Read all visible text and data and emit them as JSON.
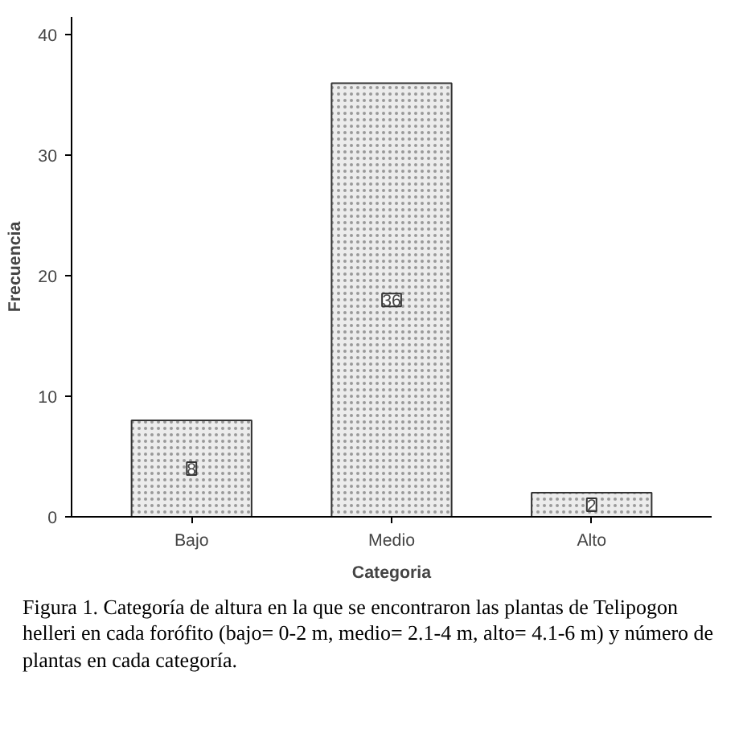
{
  "chart_data": {
    "type": "bar",
    "categories": [
      "Bajo",
      "Medio",
      "Alto"
    ],
    "values": [
      8,
      36,
      2
    ],
    "color": "#ececec",
    "xlabel": "Categoria",
    "ylabel": "Frecuencia",
    "ylim": [
      0,
      41.5
    ],
    "yticks": [
      0,
      10,
      20,
      30,
      40
    ],
    "data_labels": true,
    "grid": false,
    "annotations": [
      "Figura 1. Categoría de altura en la que se encontraron las plantas de Telipogon helleri en cada forófito (bajo= 0-2 m, medio= 2.1-4 m, alto= 4.1-6 m) y número de plantas en cada categoría."
    ]
  }
}
